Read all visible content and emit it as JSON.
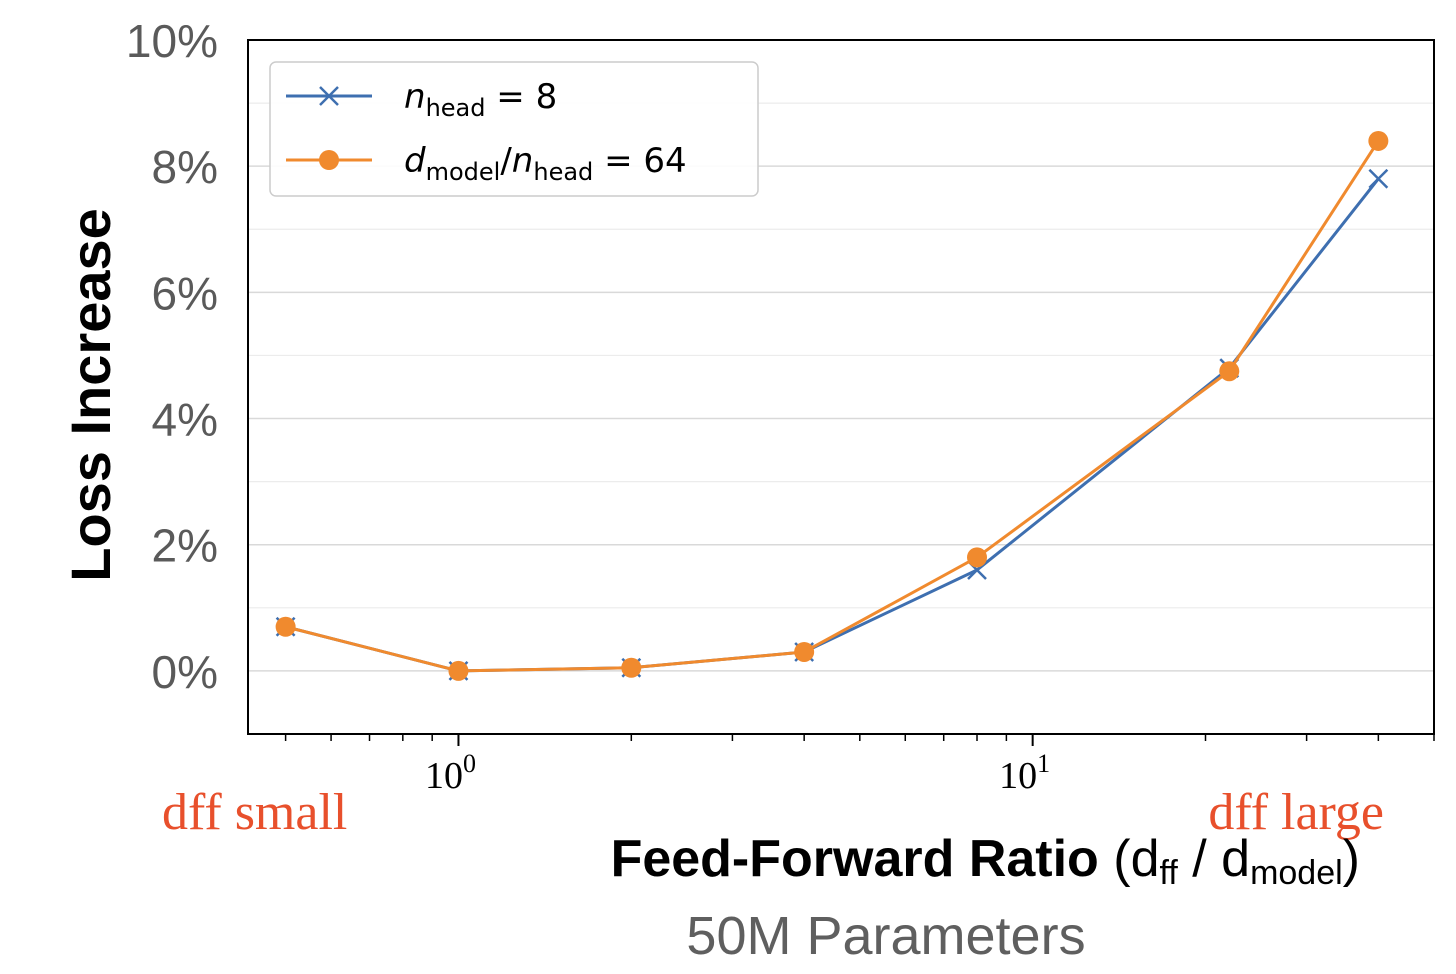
{
  "chart_data": {
    "type": "line",
    "x_scale": "log",
    "xlim": [
      0.43,
      50
    ],
    "ylim": [
      -1.0,
      10.0
    ],
    "y_ticks": [
      0,
      2,
      4,
      6,
      8,
      10
    ],
    "y_tick_labels": [
      "0%",
      "2%",
      "4%",
      "6%",
      "8%",
      "10%"
    ],
    "x_ticks": [
      1,
      10
    ],
    "x_tick_labels": [
      {
        "base": "10",
        "exp": "0"
      },
      {
        "base": "10",
        "exp": "1"
      }
    ],
    "ylabel": "Loss Increase",
    "xlabel": {
      "bold": "Feed-Forward Ratio",
      "open": " (d",
      "sub1": "ff",
      "mid": " / d",
      "sub2": "model",
      "close": ")"
    },
    "subtitle": "50M Parameters",
    "annotations": {
      "left": "dff small",
      "right": "dff large"
    },
    "grid": "horizontal",
    "legend_position": "top-left",
    "series": [
      {
        "name": "n_head = 8",
        "legend": {
          "var": "n",
          "sub": "head",
          "rest": " = 8"
        },
        "color": "#3e6fb0",
        "marker": "x",
        "x": [
          0.5,
          1,
          2,
          4,
          8,
          22,
          40
        ],
        "y": [
          0.7,
          0.0,
          0.05,
          0.3,
          1.6,
          4.8,
          7.8
        ]
      },
      {
        "name": "d_model/n_head = 64",
        "legend": {
          "var1": "d",
          "sub1": "model",
          "slash": "/",
          "var2": "n",
          "sub2": "head",
          "rest": " = 64"
        },
        "color": "#f08a2e",
        "marker": "circle",
        "x": [
          0.5,
          1,
          2,
          4,
          8,
          22,
          40
        ],
        "y": [
          0.7,
          0.0,
          0.05,
          0.3,
          1.8,
          4.75,
          8.4
        ]
      }
    ]
  }
}
